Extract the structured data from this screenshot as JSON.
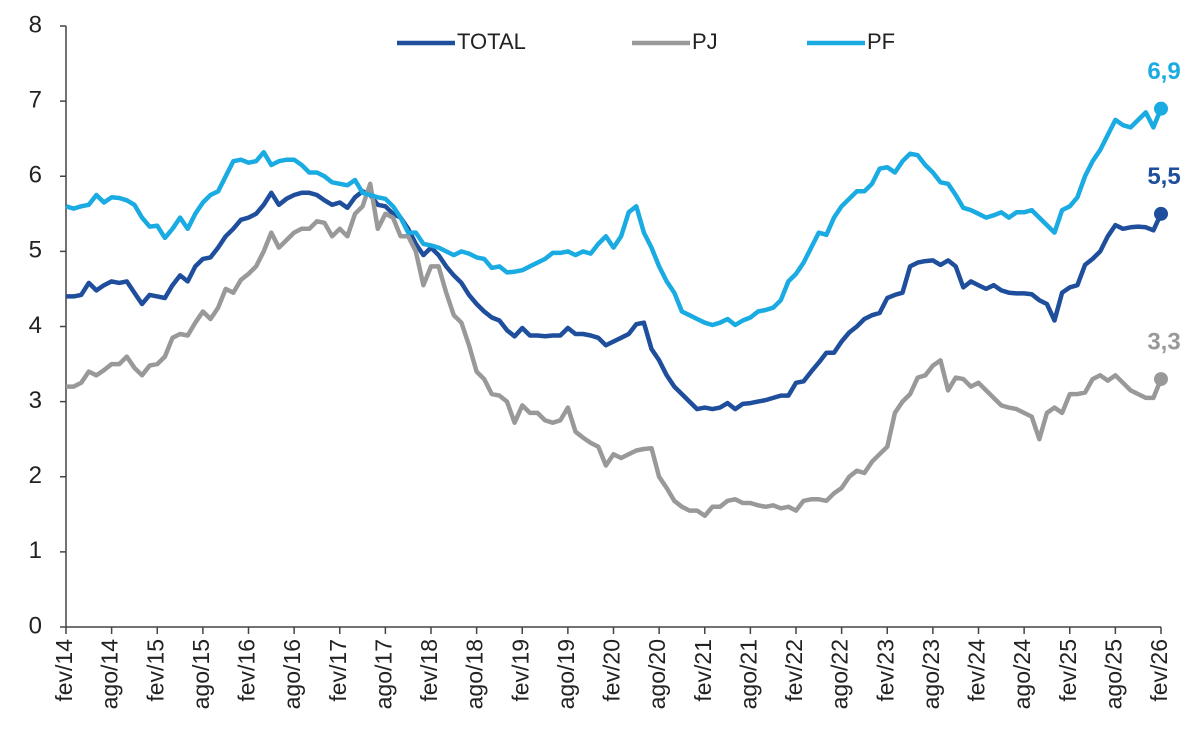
{
  "chart_data": {
    "type": "line",
    "categories": [
      "fev/14",
      null,
      null,
      null,
      null,
      null,
      "ago/14",
      null,
      null,
      null,
      null,
      null,
      "fev/15",
      null,
      null,
      null,
      null,
      null,
      "ago/15",
      null,
      null,
      null,
      null,
      null,
      "fev/16",
      null,
      null,
      null,
      null,
      null,
      "ago/16",
      null,
      null,
      null,
      null,
      null,
      "fev/17",
      null,
      null,
      null,
      null,
      null,
      "ago/17",
      null,
      null,
      null,
      null,
      null,
      "fev/18",
      null,
      null,
      null,
      null,
      null,
      "ago/18",
      null,
      null,
      null,
      null,
      null,
      "fev/19",
      null,
      null,
      null,
      null,
      null,
      "ago/19",
      null,
      null,
      null,
      null,
      null,
      "fev/20",
      null,
      null,
      null,
      null,
      null,
      "ago/20",
      null,
      null,
      null,
      null,
      null,
      "fev/21",
      null,
      null,
      null,
      null,
      null,
      "ago/21",
      null,
      null,
      null,
      null,
      null,
      "fev/22",
      null,
      null,
      null,
      null,
      null,
      "ago/22",
      null,
      null,
      null,
      null,
      null,
      "fev/23",
      null,
      null,
      null,
      null,
      null,
      "ago/23",
      null,
      null,
      null,
      null,
      null,
      "fev/24",
      null,
      null,
      null,
      null,
      null,
      "ago/24",
      null,
      null,
      null,
      null,
      null,
      "fev/25",
      null,
      null,
      null,
      null,
      null,
      "ago/25",
      null,
      null,
      null,
      null,
      null,
      "fev/26"
    ],
    "series": [
      {
        "name": "TOTAL",
        "color": "#1f4e9c",
        "values": [
          4.4,
          4.4,
          4.42,
          4.58,
          4.48,
          4.55,
          4.6,
          4.58,
          4.6,
          4.45,
          4.3,
          4.42,
          4.4,
          4.38,
          4.55,
          4.68,
          4.6,
          4.8,
          4.9,
          4.92,
          5.05,
          5.2,
          5.3,
          5.42,
          5.45,
          5.5,
          5.62,
          5.78,
          5.62,
          5.7,
          5.75,
          5.78,
          5.78,
          5.75,
          5.68,
          5.62,
          5.65,
          5.58,
          5.72,
          5.8,
          5.75,
          5.62,
          5.6,
          5.5,
          5.45,
          5.3,
          5.1,
          4.95,
          5.05,
          4.95,
          4.8,
          4.68,
          4.58,
          4.42,
          4.3,
          4.2,
          4.12,
          4.08,
          3.95,
          3.87,
          3.98,
          3.88,
          3.88,
          3.87,
          3.88,
          3.88,
          3.98,
          3.9,
          3.9,
          3.88,
          3.85,
          3.75,
          3.8,
          3.85,
          3.9,
          4.03,
          4.05,
          3.7,
          3.55,
          3.35,
          3.2,
          3.1,
          3.0,
          2.9,
          2.92,
          2.9,
          2.92,
          2.98,
          2.9,
          2.97,
          2.98,
          3.0,
          3.02,
          3.05,
          3.08,
          3.08,
          3.25,
          3.27,
          3.4,
          3.52,
          3.65,
          3.65,
          3.8,
          3.92,
          4.0,
          4.1,
          4.15,
          4.18,
          4.38,
          4.42,
          4.45,
          4.8,
          4.85,
          4.87,
          4.88,
          4.82,
          4.88,
          4.8,
          4.52,
          4.6,
          4.55,
          4.5,
          4.55,
          4.48,
          4.45,
          4.44,
          4.44,
          4.43,
          4.35,
          4.3,
          4.08,
          4.45,
          4.52,
          4.55,
          4.82,
          4.9,
          5.0,
          5.2,
          5.35,
          5.3,
          5.32,
          5.33,
          5.32,
          5.28,
          5.5
        ],
        "value_labels": [
          null,
          null,
          null,
          null,
          null,
          null,
          null,
          null,
          null,
          null,
          null,
          null,
          null,
          null,
          null,
          null,
          null,
          null,
          null,
          null,
          null,
          null,
          null,
          null,
          null,
          null,
          null,
          null,
          null,
          null,
          null,
          null,
          null,
          null,
          null,
          null,
          null,
          null,
          null,
          null,
          null,
          null,
          null,
          null,
          null,
          null,
          null,
          null,
          null,
          null,
          null,
          null,
          null,
          null,
          null,
          null,
          null,
          null,
          null,
          null,
          null,
          null,
          null,
          null,
          null,
          null,
          null,
          null,
          null,
          null,
          null,
          null,
          null,
          null,
          null,
          null,
          null,
          null,
          null,
          null,
          null,
          null,
          null,
          null,
          null,
          null,
          null,
          null,
          null,
          null,
          null,
          null,
          null,
          null,
          null,
          null,
          null,
          null,
          null,
          null,
          null,
          null,
          null,
          null,
          null,
          null,
          null,
          null,
          null,
          null,
          null,
          null,
          null,
          null,
          null,
          null,
          null,
          null,
          null,
          null,
          null,
          null,
          null,
          null,
          null,
          null,
          null,
          null,
          null,
          null,
          null,
          null,
          null,
          null,
          null,
          null,
          null,
          null,
          null,
          null,
          null,
          null,
          null,
          null,
          "5,5"
        ]
      },
      {
        "name": "PJ",
        "color": "#999999",
        "values": [
          3.2,
          3.2,
          3.25,
          3.4,
          3.35,
          3.42,
          3.5,
          3.5,
          3.6,
          3.45,
          3.35,
          3.48,
          3.5,
          3.6,
          3.85,
          3.9,
          3.88,
          4.05,
          4.2,
          4.1,
          4.25,
          4.5,
          4.45,
          4.62,
          4.7,
          4.8,
          5.0,
          5.25,
          5.05,
          5.15,
          5.25,
          5.3,
          5.3,
          5.4,
          5.38,
          5.2,
          5.3,
          5.2,
          5.5,
          5.6,
          5.9,
          5.3,
          5.5,
          5.45,
          5.2,
          5.2,
          5.0,
          4.55,
          4.8,
          4.8,
          4.45,
          4.15,
          4.05,
          3.75,
          3.4,
          3.3,
          3.1,
          3.08,
          3.0,
          2.72,
          2.95,
          2.85,
          2.85,
          2.75,
          2.72,
          2.75,
          2.92,
          2.6,
          2.52,
          2.45,
          2.4,
          2.15,
          2.3,
          2.25,
          2.3,
          2.35,
          2.37,
          2.38,
          2.0,
          1.85,
          1.68,
          1.6,
          1.55,
          1.55,
          1.48,
          1.6,
          1.6,
          1.68,
          1.7,
          1.65,
          1.65,
          1.62,
          1.6,
          1.62,
          1.58,
          1.6,
          1.55,
          1.68,
          1.7,
          1.7,
          1.68,
          1.78,
          1.85,
          2.0,
          2.08,
          2.05,
          2.2,
          2.3,
          2.4,
          2.85,
          3.0,
          3.1,
          3.32,
          3.35,
          3.48,
          3.55,
          3.15,
          3.32,
          3.3,
          3.2,
          3.25,
          3.15,
          3.05,
          2.95,
          2.92,
          2.9,
          2.85,
          2.8,
          2.5,
          2.85,
          2.92,
          2.85,
          3.1,
          3.1,
          3.12,
          3.3,
          3.35,
          3.28,
          3.35,
          3.25,
          3.15,
          3.1,
          3.05,
          3.05,
          3.3
        ],
        "value_labels": [
          null,
          null,
          null,
          null,
          null,
          null,
          null,
          null,
          null,
          null,
          null,
          null,
          null,
          null,
          null,
          null,
          null,
          null,
          null,
          null,
          null,
          null,
          null,
          null,
          null,
          null,
          null,
          null,
          null,
          null,
          null,
          null,
          null,
          null,
          null,
          null,
          null,
          null,
          null,
          null,
          null,
          null,
          null,
          null,
          null,
          null,
          null,
          null,
          null,
          null,
          null,
          null,
          null,
          null,
          null,
          null,
          null,
          null,
          null,
          null,
          null,
          null,
          null,
          null,
          null,
          null,
          null,
          null,
          null,
          null,
          null,
          null,
          null,
          null,
          null,
          null,
          null,
          null,
          null,
          null,
          null,
          null,
          null,
          null,
          null,
          null,
          null,
          null,
          null,
          null,
          null,
          null,
          null,
          null,
          null,
          null,
          null,
          null,
          null,
          null,
          null,
          null,
          null,
          null,
          null,
          null,
          null,
          null,
          null,
          null,
          null,
          null,
          null,
          null,
          null,
          null,
          null,
          null,
          null,
          null,
          null,
          null,
          null,
          null,
          null,
          null,
          null,
          null,
          null,
          null,
          null,
          null,
          null,
          null,
          null,
          null,
          null,
          null,
          null,
          null,
          null,
          null,
          null,
          null,
          "3,3"
        ]
      },
      {
        "name": "PF",
        "color": "#1aabe2",
        "values": [
          5.6,
          5.57,
          5.6,
          5.62,
          5.75,
          5.65,
          5.72,
          5.71,
          5.68,
          5.62,
          5.45,
          5.33,
          5.34,
          5.18,
          5.3,
          5.45,
          5.3,
          5.5,
          5.65,
          5.75,
          5.8,
          6.0,
          6.2,
          6.22,
          6.18,
          6.2,
          6.32,
          6.15,
          6.2,
          6.22,
          6.22,
          6.15,
          6.05,
          6.05,
          6.0,
          5.92,
          5.9,
          5.88,
          5.95,
          5.78,
          5.75,
          5.72,
          5.7,
          5.6,
          5.45,
          5.25,
          5.25,
          5.1,
          5.08,
          5.05,
          5.0,
          4.95,
          5.0,
          4.97,
          4.92,
          4.9,
          4.78,
          4.8,
          4.72,
          4.73,
          4.75,
          4.8,
          4.85,
          4.9,
          4.98,
          4.98,
          5.0,
          4.95,
          5.0,
          4.97,
          5.1,
          5.2,
          5.05,
          5.2,
          5.52,
          5.6,
          5.25,
          5.05,
          4.8,
          4.6,
          4.45,
          4.2,
          4.15,
          4.1,
          4.05,
          4.02,
          4.05,
          4.1,
          4.02,
          4.08,
          4.12,
          4.2,
          4.22,
          4.25,
          4.35,
          4.6,
          4.7,
          4.85,
          5.05,
          5.25,
          5.22,
          5.45,
          5.6,
          5.7,
          5.8,
          5.8,
          5.9,
          6.1,
          6.12,
          6.05,
          6.2,
          6.3,
          6.28,
          6.15,
          6.05,
          5.92,
          5.9,
          5.75,
          5.58,
          5.55,
          5.5,
          5.45,
          5.48,
          5.52,
          5.45,
          5.52,
          5.52,
          5.55,
          5.45,
          5.35,
          5.25,
          5.55,
          5.6,
          5.72,
          6.0,
          6.2,
          6.35,
          6.55,
          6.75,
          6.68,
          6.65,
          6.75,
          6.85,
          6.65,
          6.9
        ],
        "value_labels": [
          null,
          null,
          null,
          null,
          null,
          null,
          null,
          null,
          null,
          null,
          null,
          null,
          null,
          null,
          null,
          null,
          null,
          null,
          null,
          null,
          null,
          null,
          null,
          null,
          null,
          null,
          null,
          null,
          null,
          null,
          null,
          null,
          null,
          null,
          null,
          null,
          null,
          null,
          null,
          null,
          null,
          null,
          null,
          null,
          null,
          null,
          null,
          null,
          null,
          null,
          null,
          null,
          null,
          null,
          null,
          null,
          null,
          null,
          null,
          null,
          null,
          null,
          null,
          null,
          null,
          null,
          null,
          null,
          null,
          null,
          null,
          null,
          null,
          null,
          null,
          null,
          null,
          null,
          null,
          null,
          null,
          null,
          null,
          null,
          null,
          null,
          null,
          null,
          null,
          null,
          null,
          null,
          null,
          null,
          null,
          null,
          null,
          null,
          null,
          null,
          null,
          null,
          null,
          null,
          null,
          null,
          null,
          null,
          null,
          null,
          null,
          null,
          null,
          null,
          null,
          null,
          null,
          null,
          null,
          null,
          null,
          null,
          null,
          null,
          null,
          null,
          null,
          null,
          null,
          null,
          null,
          null,
          null,
          null,
          null,
          null,
          null,
          null,
          null,
          null,
          null,
          null,
          null,
          null,
          "6,9"
        ]
      }
    ],
    "ylim": [
      0,
      8
    ],
    "yticks": [
      0,
      1,
      2,
      3,
      4,
      5,
      6,
      7,
      8
    ],
    "grid": false,
    "legend": "top"
  }
}
